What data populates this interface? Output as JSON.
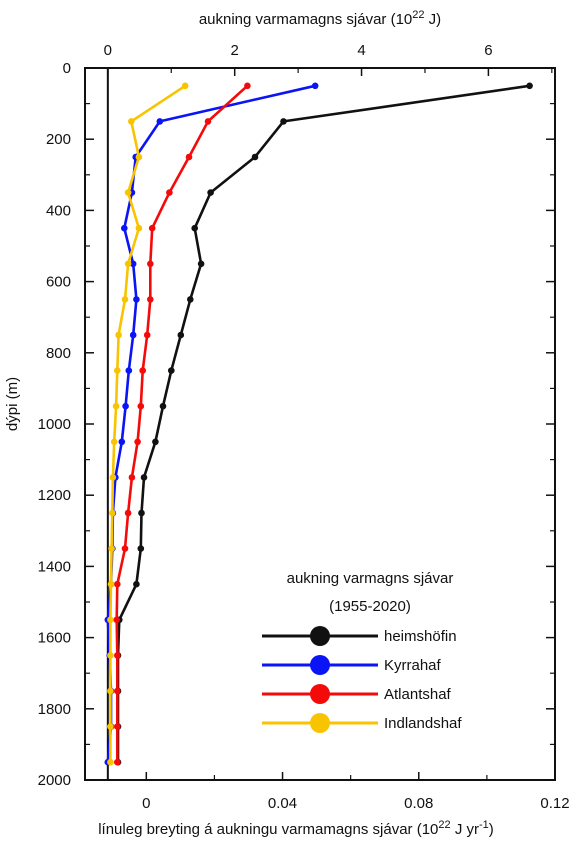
{
  "chart_data": {
    "type": "line",
    "orientation": "depth-profile",
    "top_axis": {
      "label": "aukning varmamagns sjávar",
      "unit_base": "10",
      "unit_exp": "22",
      "unit_suffix": " J)",
      "range": [
        -0.36,
        7.05
      ],
      "ticks": [
        0,
        2,
        4,
        6
      ],
      "tick_labels": [
        "0",
        "2",
        "4",
        "6"
      ]
    },
    "bottom_axis": {
      "label": "línuleg breyting á aukningu varmamagns sjávar",
      "unit_base": "10",
      "unit_exp": "22",
      "unit_mid": " J yr",
      "unit_exp2": "-1",
      "range": [
        -0.018,
        0.12
      ],
      "ticks": [
        0,
        0.04,
        0.08,
        0.12
      ],
      "tick_labels": [
        "0",
        "0.04",
        "0.08",
        "0.12"
      ]
    },
    "y_axis": {
      "label": "dýpi (m)",
      "range": [
        0,
        2000
      ],
      "inverted": true,
      "ticks": [
        0,
        200,
        400,
        600,
        800,
        1000,
        1200,
        1400,
        1600,
        1800,
        2000
      ],
      "tick_labels": [
        "0",
        "200",
        "400",
        "600",
        "800",
        "1000",
        "1200",
        "1400",
        "1600",
        "1800",
        "2000"
      ]
    },
    "series_units": "top axis (10^22 J)",
    "legend": {
      "title_line1": "aukning varmagns sjávar",
      "title_line2": "(1955-2020)",
      "position": "bottom-right"
    },
    "reference_line_x": 0,
    "series": [
      {
        "name": "heimshöfin",
        "color": "#111111",
        "points": [
          [
            6.65,
            50
          ],
          [
            2.77,
            150
          ],
          [
            2.32,
            250
          ],
          [
            1.62,
            350
          ],
          [
            1.37,
            450
          ],
          [
            1.47,
            550
          ],
          [
            1.3,
            650
          ],
          [
            1.15,
            750
          ],
          [
            1.0,
            850
          ],
          [
            0.87,
            950
          ],
          [
            0.75,
            1050
          ],
          [
            0.57,
            1150
          ],
          [
            0.53,
            1250
          ],
          [
            0.52,
            1350
          ],
          [
            0.45,
            1450
          ],
          [
            0.18,
            1550
          ],
          [
            0.16,
            1650
          ],
          [
            0.16,
            1750
          ],
          [
            0.16,
            1850
          ],
          [
            0.16,
            1950
          ]
        ]
      },
      {
        "name": "Kyrrahaf",
        "color": "#0a14f5",
        "points": [
          [
            3.27,
            50
          ],
          [
            0.82,
            150
          ],
          [
            0.44,
            250
          ],
          [
            0.38,
            350
          ],
          [
            0.26,
            450
          ],
          [
            0.4,
            550
          ],
          [
            0.45,
            650
          ],
          [
            0.4,
            750
          ],
          [
            0.33,
            850
          ],
          [
            0.28,
            950
          ],
          [
            0.22,
            1050
          ],
          [
            0.12,
            1150
          ],
          [
            0.08,
            1250
          ],
          [
            0.07,
            1350
          ],
          [
            0.05,
            1450
          ],
          [
            0.0,
            1550
          ],
          [
            0.03,
            1650
          ],
          [
            0.05,
            1750
          ],
          [
            0.05,
            1850
          ],
          [
            0.0,
            1950
          ]
        ]
      },
      {
        "name": "Atlantshaf",
        "color": "#f50a0a",
        "points": [
          [
            2.2,
            50
          ],
          [
            1.58,
            150
          ],
          [
            1.28,
            250
          ],
          [
            0.97,
            350
          ],
          [
            0.7,
            450
          ],
          [
            0.67,
            550
          ],
          [
            0.67,
            650
          ],
          [
            0.62,
            750
          ],
          [
            0.55,
            850
          ],
          [
            0.52,
            950
          ],
          [
            0.47,
            1050
          ],
          [
            0.38,
            1150
          ],
          [
            0.32,
            1250
          ],
          [
            0.27,
            1350
          ],
          [
            0.15,
            1450
          ],
          [
            0.14,
            1550
          ],
          [
            0.15,
            1650
          ],
          [
            0.15,
            1750
          ],
          [
            0.15,
            1850
          ],
          [
            0.15,
            1950
          ]
        ]
      },
      {
        "name": "Indlandshaf",
        "color": "#f8c400",
        "points": [
          [
            1.22,
            50
          ],
          [
            0.37,
            150
          ],
          [
            0.49,
            250
          ],
          [
            0.32,
            350
          ],
          [
            0.49,
            450
          ],
          [
            0.32,
            550
          ],
          [
            0.27,
            650
          ],
          [
            0.17,
            750
          ],
          [
            0.15,
            850
          ],
          [
            0.13,
            950
          ],
          [
            0.1,
            1050
          ],
          [
            0.08,
            1150
          ],
          [
            0.07,
            1250
          ],
          [
            0.06,
            1350
          ],
          [
            0.05,
            1450
          ],
          [
            0.04,
            1550
          ],
          [
            0.04,
            1650
          ],
          [
            0.04,
            1750
          ],
          [
            0.04,
            1850
          ],
          [
            0.04,
            1950
          ]
        ]
      }
    ],
    "grid": false
  }
}
